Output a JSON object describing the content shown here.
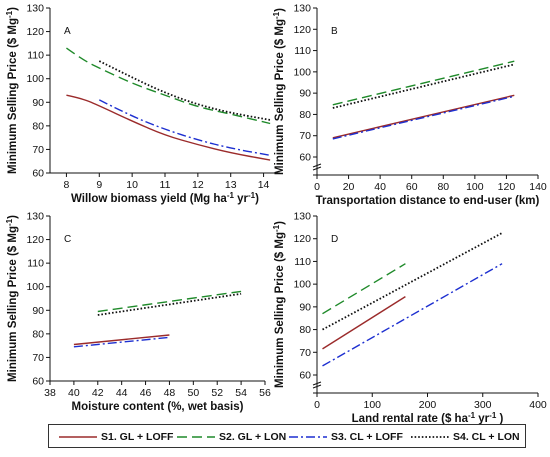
{
  "legend": [
    {
      "label": "S1. GL + LOFF",
      "color": "#9b2b2b",
      "dash": "none"
    },
    {
      "label": "S2. GL + LON",
      "color": "#1f8a2a",
      "dash": "10,5"
    },
    {
      "label": "S3. CL + LOFF",
      "color": "#1d2fd0",
      "dash": "9,3,2,3"
    },
    {
      "label": "S4. CL + LON",
      "color": "#111111",
      "dash": "1.6,2"
    }
  ],
  "chart_data": [
    {
      "type": "line",
      "panel_label": "A",
      "xlabel": "Willow biomass yield (Mg ha-1 yr-1)",
      "ylabel": "Minimum Selling Price ($ Mg-1)",
      "xlim": [
        7.5,
        14.5
      ],
      "ylim": [
        60,
        130
      ],
      "xticks": [
        "8",
        "9",
        "10",
        "11",
        "12",
        "13",
        "14"
      ],
      "yticks": [
        "60",
        "70",
        "80",
        "90",
        "100",
        "110",
        "120",
        "130"
      ],
      "grid": false,
      "series": [
        {
          "name": "S1. GL + LOFF",
          "x": [
            8,
            8.5,
            9,
            10,
            11,
            12,
            13,
            14.2
          ],
          "y": [
            93,
            91.5,
            88.5,
            82,
            76,
            72,
            68.5,
            65.5
          ]
        },
        {
          "name": "S2. GL + LON",
          "x": [
            8,
            8.5,
            9,
            10,
            11,
            12,
            13,
            14.2
          ],
          "y": [
            113,
            108,
            104.5,
            98,
            93,
            88,
            85,
            81
          ]
        },
        {
          "name": "S3. CL + LOFF",
          "x": [
            9,
            10,
            11,
            12,
            13,
            14.2
          ],
          "y": [
            91,
            84,
            78.5,
            74,
            70.5,
            67.5
          ]
        },
        {
          "name": "S4. CL + LON",
          "x": [
            9,
            10,
            11,
            12,
            13,
            14.2
          ],
          "y": [
            107.5,
            100.5,
            94,
            89,
            85.5,
            82.5
          ]
        }
      ]
    },
    {
      "type": "line",
      "panel_label": "B",
      "xlabel": "Transportation distance to end-user (km)",
      "ylabel": "Minimum Selling Price ($ Mg-1)",
      "xlim": [
        0,
        140
      ],
      "ylim": [
        0,
        130
      ],
      "xticks": [
        "0",
        "20",
        "40",
        "60",
        "80",
        "100",
        "120",
        "140"
      ],
      "yticks": [
        "60",
        "70",
        "80",
        "90",
        "100",
        "110",
        "120",
        "130"
      ],
      "yaxis_break": true,
      "grid": false,
      "series": [
        {
          "name": "S1. GL + LOFF",
          "x": [
            10,
            125
          ],
          "y": [
            69,
            89
          ]
        },
        {
          "name": "S2. GL + LON",
          "x": [
            10,
            125
          ],
          "y": [
            84.5,
            105
          ]
        },
        {
          "name": "S3. CL + LOFF",
          "x": [
            10,
            125
          ],
          "y": [
            68.5,
            88.5
          ]
        },
        {
          "name": "S4. CL + LON",
          "x": [
            10,
            125
          ],
          "y": [
            83,
            103.5
          ]
        }
      ]
    },
    {
      "type": "line",
      "panel_label": "C",
      "xlabel": "Moisture content (%, wet basis)",
      "ylabel": "Minimum Selling Price ($ Mg-1)",
      "xlim": [
        38,
        56
      ],
      "ylim": [
        60,
        130
      ],
      "xticks": [
        "38",
        "40",
        "42",
        "44",
        "46",
        "48",
        "50",
        "52",
        "54",
        "56"
      ],
      "yticks": [
        "60",
        "70",
        "80",
        "90",
        "100",
        "110",
        "120",
        "130"
      ],
      "grid": false,
      "series": [
        {
          "name": "S1. GL + LOFF",
          "x": [
            40,
            48
          ],
          "y": [
            75.5,
            79.5
          ]
        },
        {
          "name": "S2. GL + LON",
          "x": [
            42,
            54
          ],
          "y": [
            89.5,
            98
          ]
        },
        {
          "name": "S3. CL + LOFF",
          "x": [
            40,
            48
          ],
          "y": [
            74.5,
            78.5
          ]
        },
        {
          "name": "S4. CL + LON",
          "x": [
            42,
            54
          ],
          "y": [
            88,
            97
          ]
        }
      ]
    },
    {
      "type": "line",
      "panel_label": "D",
      "xlabel": "Land rental rate ($ ha-1 yr-1 )",
      "ylabel": "Minimum Selling Price ($ Mg-1)",
      "xlim": [
        0,
        400
      ],
      "ylim": [
        0,
        130
      ],
      "xticks": [
        "0",
        "100",
        "200",
        "300",
        "400"
      ],
      "yticks": [
        "60",
        "70",
        "80",
        "90",
        "100",
        "110",
        "120",
        "130"
      ],
      "yaxis_break": true,
      "grid": false,
      "series": [
        {
          "name": "S1. GL + LOFF",
          "x": [
            10,
            160
          ],
          "y": [
            71.5,
            94.5
          ]
        },
        {
          "name": "S2. GL + LON",
          "x": [
            10,
            160
          ],
          "y": [
            87,
            109
          ]
        },
        {
          "name": "S3. CL + LOFF",
          "x": [
            10,
            335
          ],
          "y": [
            64,
            109
          ]
        },
        {
          "name": "S4. CL + LON",
          "x": [
            10,
            335
          ],
          "y": [
            80,
            122.5
          ]
        }
      ]
    }
  ]
}
